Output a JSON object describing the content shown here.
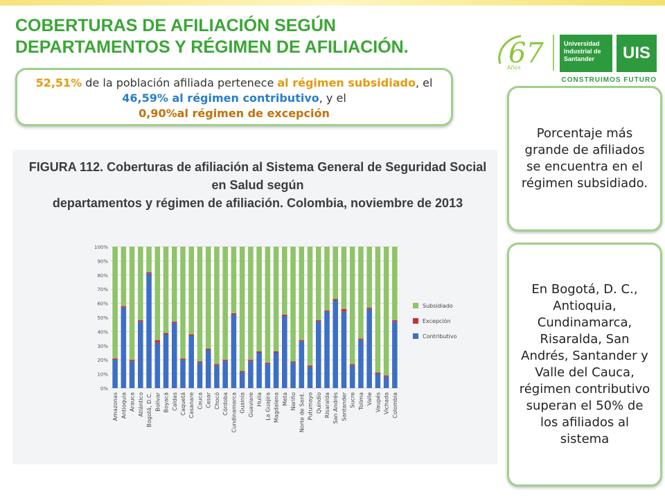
{
  "slide": {
    "title_line1": "COBERTURAS DE AFILIACIÓN SEGÚN",
    "title_line2": "DEPARTAMENTOS Y RÉGIMEN DE AFILIACIÓN.",
    "logo": {
      "anniversary": "67",
      "anniversary_sub": "Años",
      "university_line1": "Universidad",
      "university_line2": "Industrial de",
      "university_line3": "Santander",
      "uis": "UIS",
      "tagline": "CONSTRUIMOS FUTURO"
    },
    "summary": {
      "p1": "52,51%",
      "p2": " de la población afiliada pertenece ",
      "p3": "al régimen subsidiado",
      "p4": ", el ",
      "p5": "46,59% al régimen contributivo",
      "p6": ", y el ",
      "p7": "0,90%al régimen de excepción"
    },
    "note1": "Porcentaje más grande de afiliados se encuentra en el régimen subsidiado.",
    "note2": " En Bogotá, D. C., Antioquia, Cundinamarca, Risaralda, San Andrés, Santander y Valle del Cauca, régimen contributivo superan el 50% de los afiliados al sistema",
    "colors": {
      "green": "#3aa635",
      "orange": "#e49a0c",
      "blue": "#2a7ec8"
    }
  },
  "chart_data": {
    "type": "bar",
    "stacked": true,
    "title": "FIGURA 112. Coberturas de afiliación al Sistema General de Seguridad Social en Salud según departamentos y régimen de afiliación. Colombia, noviembre de 2013",
    "title_line1": "FIGURA 112. Coberturas de afiliación al Sistema General de Seguridad Social en Salud según",
    "title_line2": "departamentos y régimen de afiliación. Colombia, noviembre de 2013",
    "categories": [
      "Amazonas",
      "Antioquia",
      "Arauca",
      "Atlántico",
      "Bogotá, D.C.",
      "Bolívar",
      "Boyacá",
      "Caldas",
      "Caquetá",
      "Casanare",
      "Cauca",
      "Cesar",
      "Chocó",
      "Córdoba",
      "Cundinamarca",
      "Guainía",
      "Guaviare",
      "Huila",
      "La Guajira",
      "Magdalena",
      "Meta",
      "Nariño",
      "Norte de Sant.",
      "Putumayo",
      "Quindío",
      "Risaralda",
      "San Andrés",
      "Santander",
      "Sucre",
      "Tolima",
      "Valle",
      "Vaupés",
      "Vichada",
      "Colombia"
    ],
    "y_ticks": [
      "0%",
      "10%",
      "20%",
      "30%",
      "40%",
      "50%",
      "60%",
      "70%",
      "80%",
      "90%",
      "100%"
    ],
    "ylim": [
      0,
      100
    ],
    "grid": true,
    "legend_position": "right",
    "series": [
      {
        "name": "Contributivo",
        "color": "#3d6fc4",
        "values": [
          20,
          57,
          19,
          47,
          81,
          32,
          38,
          46,
          20,
          37,
          18,
          27,
          16,
          19,
          52,
          11,
          19,
          25,
          17,
          25,
          51,
          18,
          33,
          15,
          47,
          54,
          62,
          54,
          16,
          34,
          56,
          10,
          8,
          47
        ]
      },
      {
        "name": "Excepción",
        "color": "#c0323a",
        "values": [
          1,
          1,
          1,
          1,
          1,
          2,
          1,
          1,
          1,
          1,
          1,
          1,
          1,
          1,
          1,
          1,
          1,
          1,
          1,
          1,
          1,
          1,
          1,
          1,
          1,
          1,
          1,
          2,
          1,
          1,
          1,
          1,
          1,
          1
        ]
      },
      {
        "name": "Subsidiado",
        "color": "#8fc46a",
        "values": [
          79,
          42,
          80,
          52,
          18,
          66,
          61,
          53,
          79,
          62,
          81,
          72,
          83,
          80,
          47,
          88,
          80,
          74,
          82,
          74,
          48,
          81,
          66,
          84,
          52,
          45,
          37,
          44,
          83,
          65,
          43,
          89,
          91,
          52
        ]
      }
    ]
  }
}
